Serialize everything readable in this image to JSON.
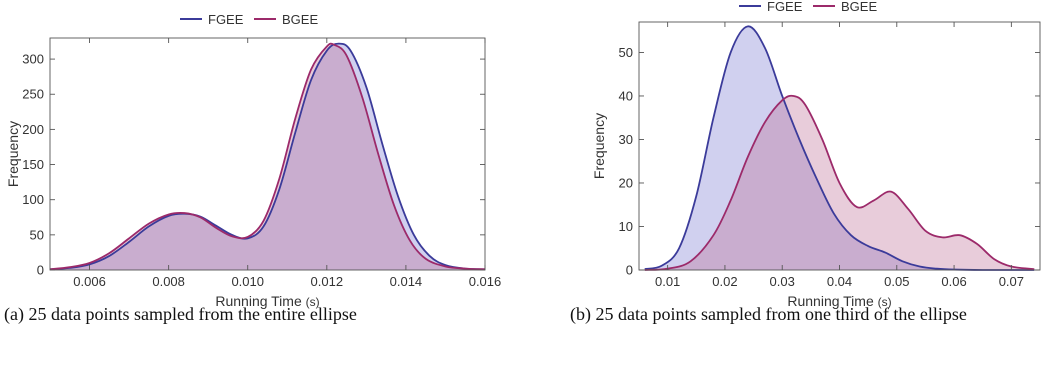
{
  "chart_data": [
    {
      "type": "area",
      "id": "a",
      "xlabel": "Running Time",
      "xunit": "(s)",
      "ylabel": "Frequency",
      "xlim": [
        0.005,
        0.016
      ],
      "ylim": [
        0,
        330
      ],
      "xticks": [
        0.006,
        0.008,
        0.01,
        0.012,
        0.014,
        0.016
      ],
      "xtick_labels": [
        "0.006",
        "0.008",
        "0.010",
        "0.012",
        "0.014",
        "0.016"
      ],
      "yticks": [
        0,
        50,
        100,
        150,
        200,
        250,
        300
      ],
      "ytick_labels": [
        "0",
        "50",
        "100",
        "150",
        "200",
        "250",
        "300"
      ],
      "legend_position": "top-center",
      "grid": false,
      "series": [
        {
          "name": "FGEE",
          "color": "#3b3b9a",
          "fill": "rgba(120,120,210,0.35)",
          "x": [
            0.005,
            0.0055,
            0.006,
            0.0065,
            0.007,
            0.0075,
            0.008,
            0.0084,
            0.0088,
            0.0092,
            0.0096,
            0.01,
            0.0104,
            0.0108,
            0.0112,
            0.0116,
            0.012,
            0.0123,
            0.0126,
            0.013,
            0.0134,
            0.0138,
            0.0142,
            0.0146,
            0.015,
            0.0155,
            0.016
          ],
          "y": [
            1,
            3,
            8,
            20,
            40,
            62,
            77,
            80,
            76,
            63,
            50,
            45,
            62,
            115,
            195,
            270,
            312,
            322,
            312,
            260,
            180,
            105,
            50,
            20,
            7,
            2,
            1
          ]
        },
        {
          "name": "BGEE",
          "color": "#9c2a6a",
          "fill": "rgba(190,110,150,0.35)",
          "x": [
            0.005,
            0.0055,
            0.006,
            0.0065,
            0.007,
            0.0075,
            0.008,
            0.0084,
            0.0088,
            0.0092,
            0.0096,
            0.01,
            0.0104,
            0.0108,
            0.0112,
            0.0116,
            0.012,
            0.0122,
            0.0125,
            0.0129,
            0.0133,
            0.0137,
            0.0141,
            0.0145,
            0.015,
            0.0155,
            0.016
          ],
          "y": [
            1,
            4,
            10,
            24,
            45,
            66,
            79,
            81,
            75,
            60,
            48,
            47,
            70,
            130,
            215,
            285,
            318,
            320,
            305,
            245,
            165,
            92,
            42,
            16,
            5,
            2,
            1
          ]
        }
      ]
    },
    {
      "type": "area",
      "id": "b",
      "xlabel": "Running Time",
      "xunit": "(s)",
      "ylabel": "Frequency",
      "xlim": [
        0.005,
        0.075
      ],
      "ylim": [
        0,
        57
      ],
      "xticks": [
        0.01,
        0.02,
        0.03,
        0.04,
        0.05,
        0.06,
        0.07
      ],
      "xtick_labels": [
        "0.01",
        "0.02",
        "0.03",
        "0.04",
        "0.05",
        "0.06",
        "0.07"
      ],
      "yticks": [
        0,
        10,
        20,
        30,
        40,
        50
      ],
      "ytick_labels": [
        "0",
        "10",
        "20",
        "30",
        "40",
        "50"
      ],
      "legend_position": "top-center",
      "grid": false,
      "series": [
        {
          "name": "FGEE",
          "color": "#3b3b9a",
          "fill": "rgba(120,120,210,0.35)",
          "x": [
            0.006,
            0.009,
            0.012,
            0.015,
            0.018,
            0.021,
            0.024,
            0.027,
            0.03,
            0.033,
            0.036,
            0.039,
            0.042,
            0.045,
            0.048,
            0.051,
            0.054,
            0.057,
            0.06,
            0.065,
            0.07,
            0.074
          ],
          "y": [
            0.2,
            1,
            5,
            17,
            35,
            50,
            56,
            51,
            40,
            30,
            21,
            13,
            8,
            5.5,
            4,
            2,
            0.8,
            0.3,
            0.1,
            0,
            0,
            0
          ]
        },
        {
          "name": "BGEE",
          "color": "#9c2a6a",
          "fill": "rgba(190,110,150,0.35)",
          "x": [
            0.006,
            0.01,
            0.014,
            0.018,
            0.021,
            0.024,
            0.027,
            0.03,
            0.032,
            0.034,
            0.037,
            0.04,
            0.043,
            0.046,
            0.049,
            0.052,
            0.055,
            0.058,
            0.061,
            0.064,
            0.067,
            0.07,
            0.074
          ],
          "y": [
            0,
            0.3,
            2,
            8,
            16,
            26,
            34,
            39,
            40,
            38,
            30,
            20,
            14.5,
            16,
            18,
            14,
            9,
            7.5,
            8,
            6,
            2.5,
            0.8,
            0.2
          ]
        }
      ]
    }
  ],
  "captions": [
    "(a) 25 data points sampled from the entire ellipse",
    "(b) 25 data points sampled from one third of the ellipse"
  ]
}
